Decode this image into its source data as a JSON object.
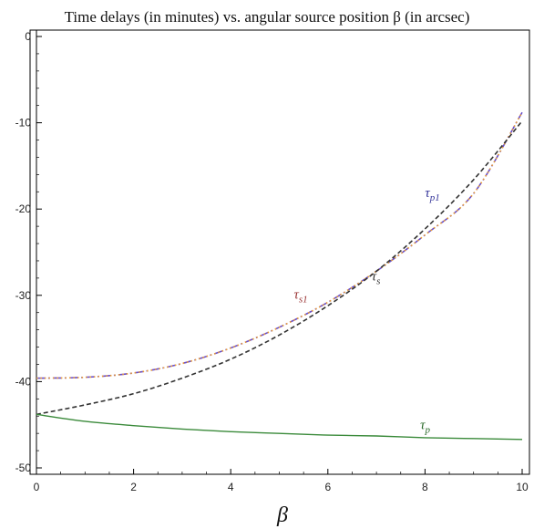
{
  "chart_data": {
    "type": "line",
    "title": "Time delays (in minutes) vs. angular source position β (in arcsec)",
    "xlabel": "β",
    "ylabel": "",
    "xlim": [
      0,
      10
    ],
    "ylim": [
      -50,
      0
    ],
    "x_ticks": [
      0,
      2,
      4,
      6,
      8,
      10
    ],
    "x_tick_labels": [
      "0",
      "2",
      "4",
      "6",
      "8",
      "10"
    ],
    "y_ticks": [
      0,
      -10,
      -20,
      -30,
      -40,
      -50
    ],
    "y_tick_labels": [
      "0",
      "-10",
      "-20",
      "-30",
      "-40",
      "-50"
    ],
    "grid": false,
    "series": [
      {
        "name_main": "τ",
        "name_sub": "p1",
        "color": "#6a50c8",
        "style": "dashdot",
        "x": [
          0,
          1,
          2,
          3,
          4,
          5,
          6,
          7,
          8,
          9,
          10
        ],
        "y": [
          -39.6,
          -39.5,
          -39.0,
          -37.9,
          -36.1,
          -33.7,
          -30.8,
          -27.2,
          -23.0,
          -18.2,
          -8.8
        ]
      },
      {
        "name_main": "τ",
        "name_sub": "s1",
        "color": "#f0a030",
        "style": "dotted",
        "x": [
          0,
          1,
          2,
          3,
          4,
          5,
          6,
          7,
          8,
          9,
          10
        ],
        "y": [
          -39.6,
          -39.5,
          -39.0,
          -37.9,
          -36.1,
          -33.7,
          -30.8,
          -27.2,
          -23.0,
          -18.2,
          -8.8
        ]
      },
      {
        "name_main": "τ",
        "name_sub": "s",
        "color": "#333333",
        "style": "dashed",
        "x": [
          0,
          1,
          2,
          3,
          4,
          5,
          6,
          7,
          8,
          9,
          10
        ],
        "y": [
          -43.8,
          -42.7,
          -41.4,
          -39.6,
          -37.4,
          -34.6,
          -31.2,
          -27.2,
          -22.3,
          -16.6,
          -9.8
        ]
      },
      {
        "name_main": "τ",
        "name_sub": "p",
        "color": "#3a8a3a",
        "style": "solid",
        "x": [
          0,
          1,
          2,
          3,
          4,
          5,
          6,
          7,
          8,
          9,
          10
        ],
        "y": [
          -43.8,
          -44.6,
          -45.1,
          -45.5,
          -45.8,
          -46.0,
          -46.2,
          -46.3,
          -46.5,
          -46.6,
          -46.7
        ]
      }
    ],
    "labels": [
      {
        "main": "τ",
        "sub": "p1",
        "color": "#333399",
        "x": 8.0,
        "y": -18.6
      },
      {
        "main": "τ",
        "sub": "s1",
        "color": "#993333",
        "x": 5.3,
        "y": -30.4
      },
      {
        "main": "τ",
        "sub": "s",
        "color": "#333333",
        "x": 6.9,
        "y": -28.3
      },
      {
        "main": "τ",
        "sub": "p",
        "color": "#2a6a2a",
        "x": 7.9,
        "y": -45.5
      }
    ]
  }
}
